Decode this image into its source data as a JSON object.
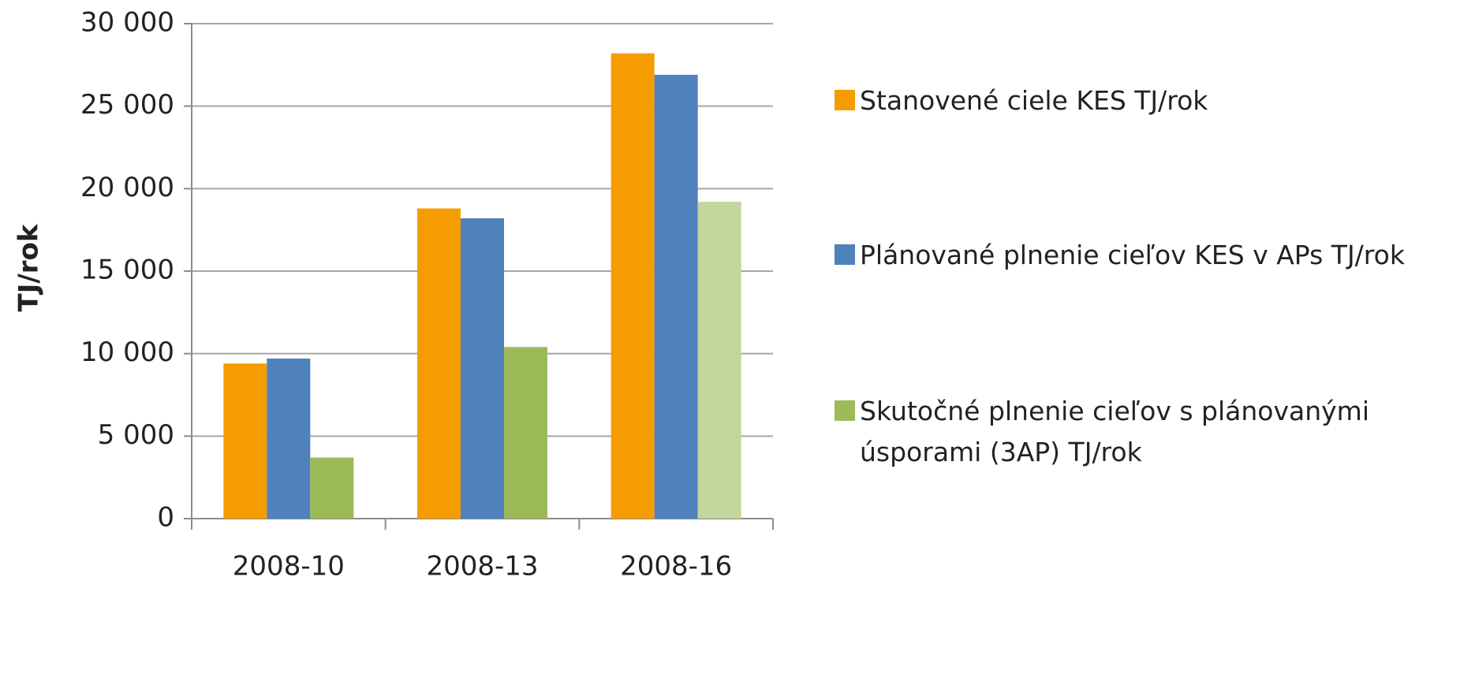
{
  "chart_data": {
    "type": "bar",
    "y_label": "TJ/rok",
    "categories": [
      "2008-10",
      "2008-13",
      "2008-16"
    ],
    "series": [
      {
        "name": "Stanovené ciele KES TJ/rok",
        "color": "#f59d00",
        "values": [
          9400,
          18800,
          28200
        ]
      },
      {
        "name": "Plánované plnenie cieľov KES v APs TJ/rok",
        "color": "#4f81bd",
        "values": [
          9700,
          18200,
          26900
        ]
      },
      {
        "name": "Skutočné plnenie cieľov s plánovanými úsporami (3AP) TJ/rok",
        "color": "#9bbb59",
        "point_colors": [
          "#9bbb59",
          "#9bbb59",
          "#c3d69b"
        ],
        "values": [
          3700,
          10400,
          19200
        ]
      }
    ],
    "ylim": [
      0,
      30000
    ],
    "yticks": [
      0,
      {
        "value": 5000,
        "label": "5 000"
      },
      {
        "value": 10000,
        "label": "10 000"
      },
      {
        "value": 15000,
        "label": "15 000"
      },
      {
        "value": 20000,
        "label": "20 000"
      },
      {
        "value": 25000,
        "label": "25 000"
      },
      {
        "value": 30000,
        "label": "30 000"
      }
    ],
    "grid": true,
    "legend": "right"
  }
}
